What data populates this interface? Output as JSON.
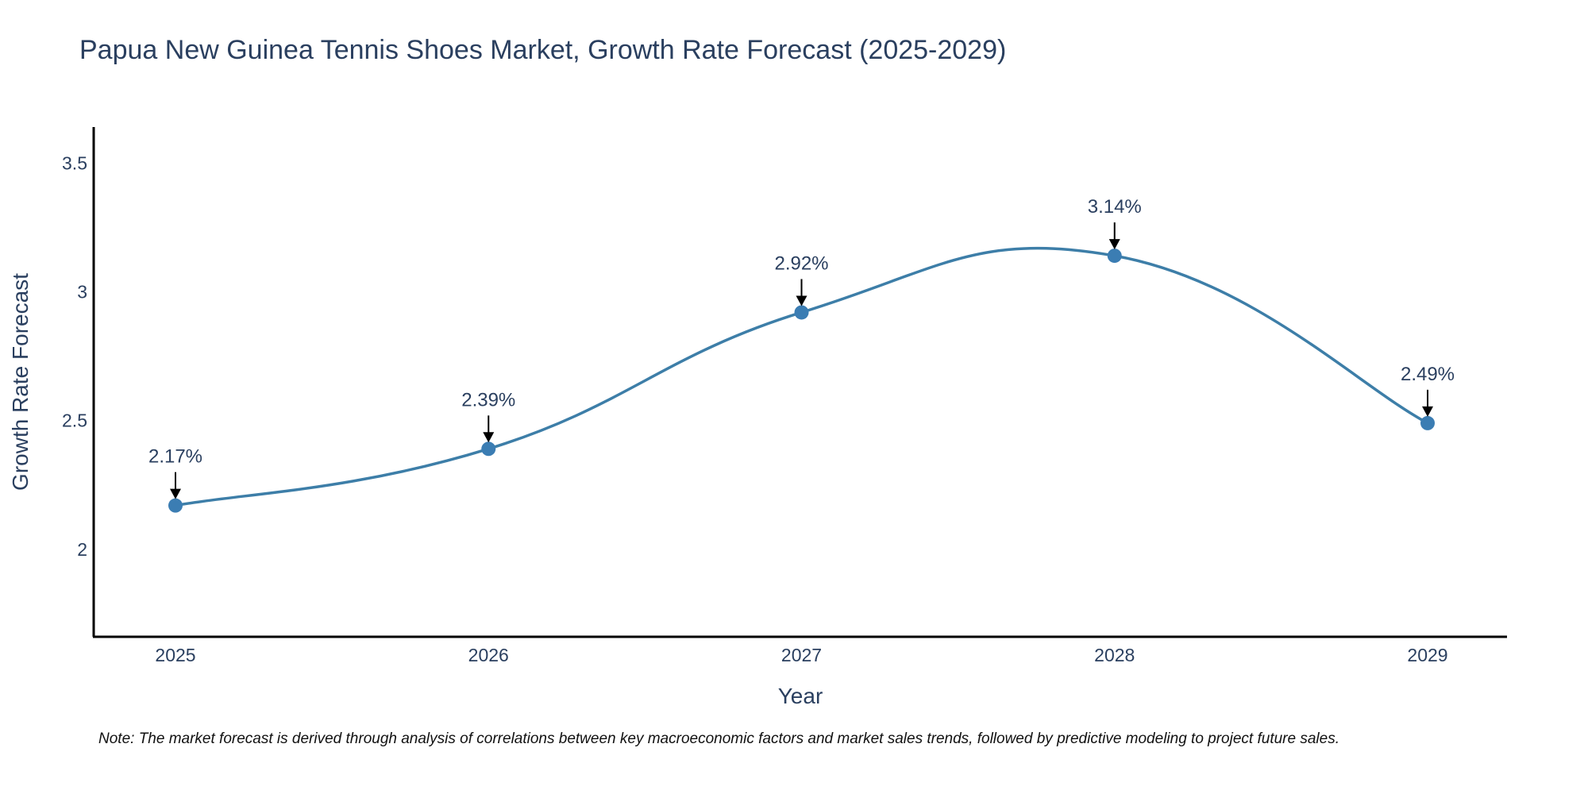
{
  "chart_data": {
    "type": "line",
    "title": "Papua New Guinea Tennis Shoes Market, Growth Rate Forecast (2025-2029)",
    "xlabel": "Year",
    "ylabel": "Growth Rate Forecast",
    "categories": [
      "2025",
      "2026",
      "2027",
      "2028",
      "2029"
    ],
    "values": [
      2.17,
      2.39,
      2.92,
      3.14,
      2.49
    ],
    "data_labels": [
      "2.17%",
      "2.39%",
      "2.92%",
      "3.14%",
      "2.49%"
    ],
    "yticks": [
      2,
      2.5,
      3,
      3.5
    ],
    "ytick_labels": [
      "2",
      "2.5",
      "3",
      "3.5"
    ],
    "ylim": [
      1.66,
      3.64
    ],
    "grid": false,
    "line_shape": "spline",
    "series_color": "#3d7ea8",
    "marker_color": "#3b7db3",
    "annotation_arrow_color": "#000000"
  },
  "note": "Note: The market forecast is derived through analysis of correlations between key macroeconomic factors and market sales trends, followed by predictive modeling to project future sales."
}
